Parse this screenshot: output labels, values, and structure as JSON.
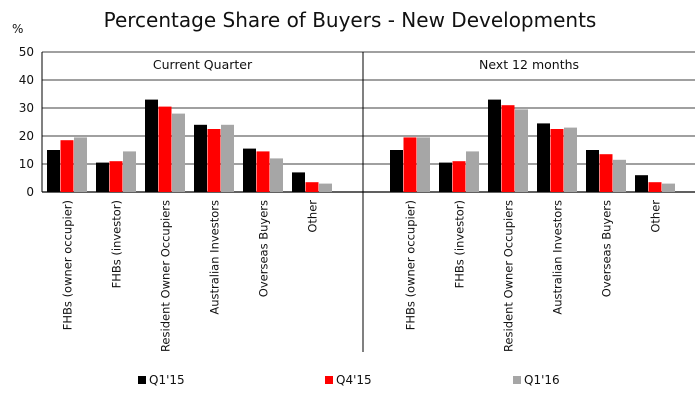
{
  "chart_data": {
    "type": "bar",
    "title": "Percentage Share of Buyers - New Developments",
    "ylabel": "%",
    "ylim": [
      0,
      50
    ],
    "yticks": [
      0,
      10,
      20,
      30,
      40,
      50
    ],
    "grid": true,
    "legend_position": "bottom",
    "categories": [
      "FHBs (owner occupier)",
      "FHBs (investor)",
      "Resident Owner Occupiers",
      "Australian Investors",
      "Overseas Buyers",
      "Other"
    ],
    "series_names": [
      "Q1'15",
      "Q4'15",
      "Q1'16"
    ],
    "colors": [
      "#000000",
      "#ff0000",
      "#a6a6a6"
    ],
    "panels": [
      {
        "title": "Current Quarter",
        "series": [
          {
            "name": "Q1'15",
            "values": [
              15,
              10.5,
              33,
              24,
              15.5,
              7
            ]
          },
          {
            "name": "Q4'15",
            "values": [
              18.5,
              11,
              30.5,
              22.5,
              14.5,
              3.5
            ]
          },
          {
            "name": "Q1'16",
            "values": [
              19.5,
              14.5,
              28,
              24,
              12,
              3
            ]
          }
        ]
      },
      {
        "title": "Next 12 months",
        "series": [
          {
            "name": "Q1'15",
            "values": [
              15,
              10.5,
              33,
              24.5,
              15,
              6
            ]
          },
          {
            "name": "Q4'15",
            "values": [
              19.5,
              11,
              31,
              22.5,
              13.5,
              3.5
            ]
          },
          {
            "name": "Q1'16",
            "values": [
              19.5,
              14.5,
              29.5,
              23,
              11.5,
              3
            ]
          }
        ]
      }
    ]
  }
}
